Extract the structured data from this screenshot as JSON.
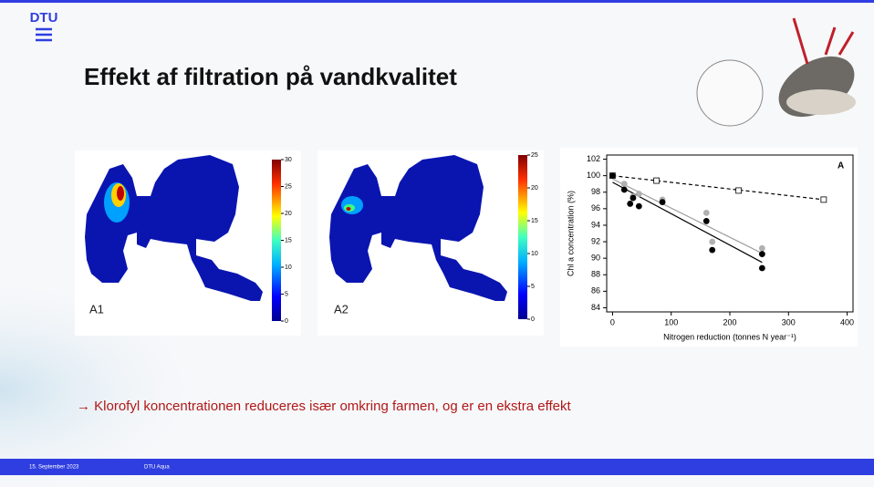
{
  "header": {
    "logo": "DTU",
    "title": "Effekt af filtration på vandkvalitet"
  },
  "maps": [
    {
      "label": "A1",
      "colorbar_lim": [
        0,
        30
      ],
      "colorbar_ticks": [
        0,
        5,
        10,
        15,
        20,
        25,
        30
      ]
    },
    {
      "label": "A2",
      "colorbar_lim": [
        0,
        25
      ],
      "colorbar_ticks": [
        0,
        5,
        10,
        15,
        20,
        25
      ]
    }
  ],
  "chart_data": {
    "type": "scatter",
    "panel_label": "A",
    "x_label": "Nitrogen reduction (tonnes N year⁻¹)",
    "y_label": "Chl a concentration (%)",
    "xlim": [
      -10,
      410
    ],
    "ylim": [
      83.5,
      102.5
    ],
    "xticks": [
      0,
      100,
      200,
      300,
      400
    ],
    "yticks": [
      84,
      86,
      88,
      90,
      92,
      94,
      96,
      98,
      100,
      102
    ],
    "series": [
      {
        "marker": "square",
        "color": "#ffffff",
        "x": [
          0,
          75,
          215,
          360
        ],
        "values": [
          100,
          99.4,
          98.2,
          97.1
        ]
      },
      {
        "marker": "circle",
        "color": "#b0b0b0",
        "x": [
          0,
          20,
          35,
          45,
          85,
          160,
          170,
          255
        ],
        "values": [
          100,
          99,
          97.5,
          97.8,
          97.1,
          95.5,
          92,
          91.2
        ]
      },
      {
        "marker": "circle",
        "color": "#000000",
        "x": [
          0,
          20,
          30,
          35,
          45,
          85,
          160,
          170,
          255,
          255
        ],
        "values": [
          100,
          98.3,
          96.6,
          97.3,
          96.3,
          96.8,
          94.5,
          91,
          90.5,
          88.8
        ]
      }
    ],
    "fit_lines": [
      {
        "style": "dashed",
        "color": "#000000",
        "x": [
          0,
          360
        ],
        "values": [
          100,
          97.1
        ]
      },
      {
        "style": "solid",
        "color": "#9a9a9a",
        "x": [
          0,
          255
        ],
        "values": [
          99.6,
          90.6
        ]
      },
      {
        "style": "solid",
        "color": "#000000",
        "x": [
          0,
          255
        ],
        "values": [
          99.2,
          89.5
        ]
      }
    ]
  },
  "body": {
    "text": "→ Klorofyl koncentrationen reduceres især omkring farmen, og er en ekstra effekt"
  },
  "footer": {
    "date": "15. September 2023",
    "unit": "DTU Aqua"
  }
}
